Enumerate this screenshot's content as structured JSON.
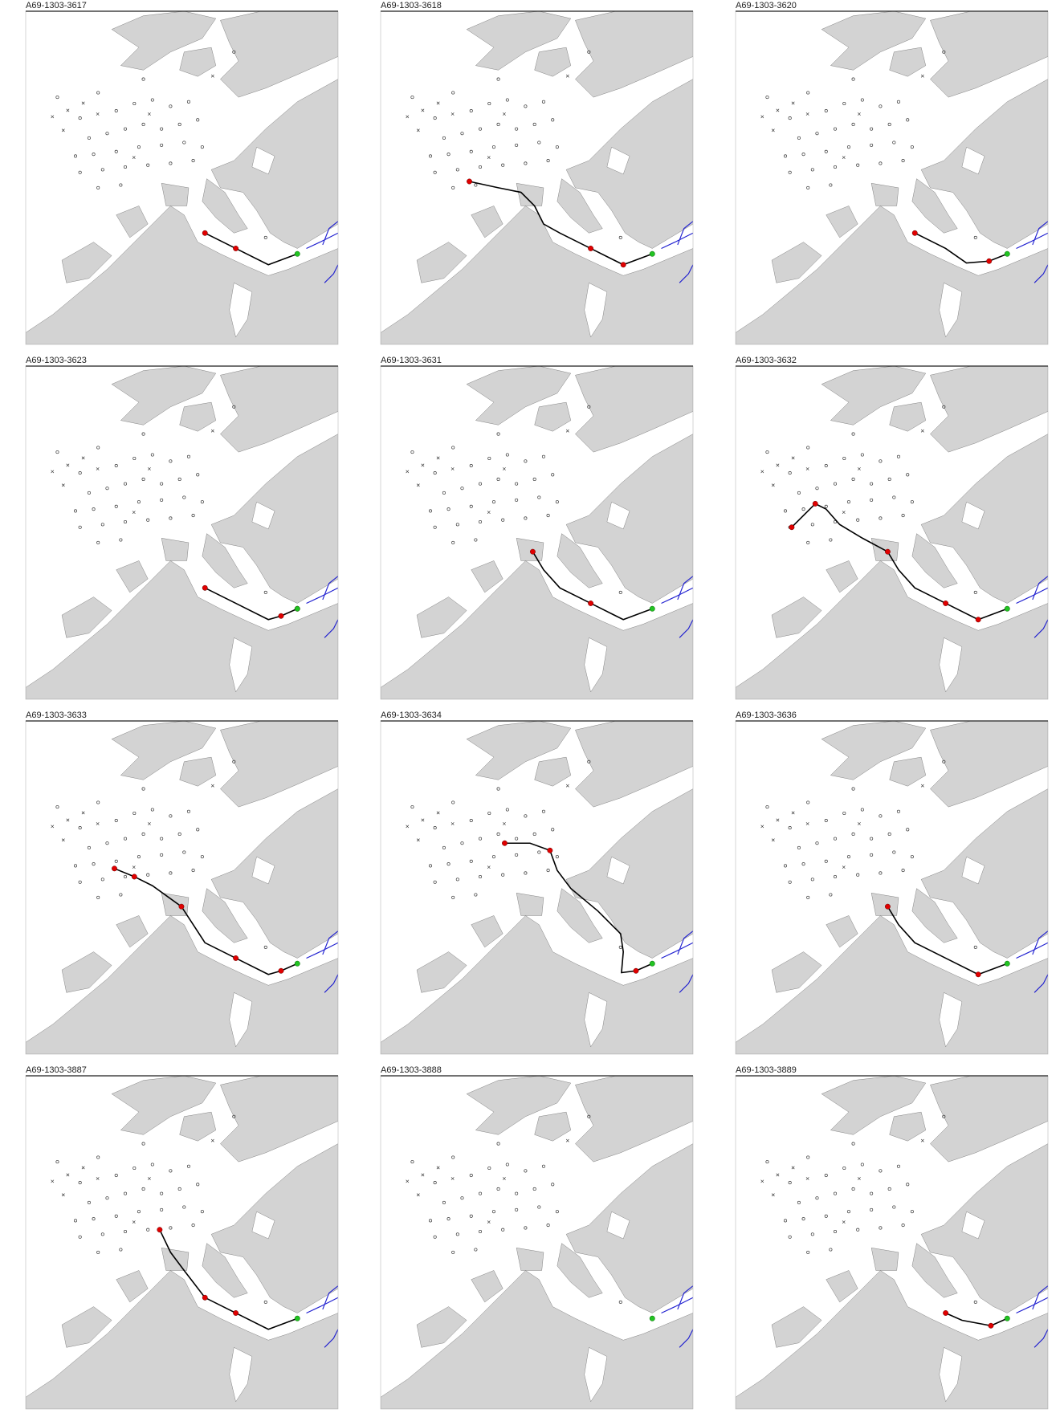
{
  "panels": [
    {
      "title": "A69-1303-3617"
    },
    {
      "title": "A69-1303-3618"
    },
    {
      "title": "A69-1303-3620"
    },
    {
      "title": "A69-1303-3623"
    },
    {
      "title": "A69-1303-3631"
    },
    {
      "title": "A69-1303-3632"
    },
    {
      "title": "A69-1303-3633"
    },
    {
      "title": "A69-1303-3634"
    },
    {
      "title": "A69-1303-3636"
    },
    {
      "title": "A69-1303-3887"
    },
    {
      "title": "A69-1303-3888"
    },
    {
      "title": "A69-1303-3889"
    }
  ]
}
